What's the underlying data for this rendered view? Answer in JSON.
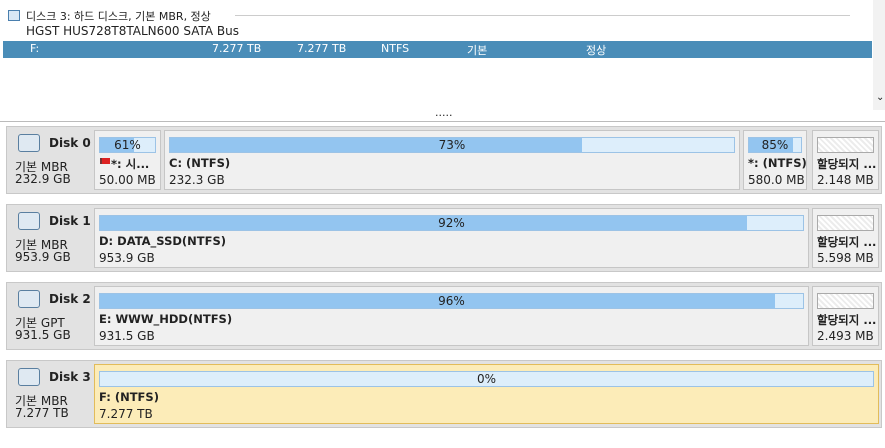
{
  "top_panel": {
    "disk_header": "디스크 3: 하드 디스크, 기본 MBR, 정상",
    "model": "HGST HUS728T8TALN600 SATA Bus",
    "row": [
      "F:",
      "7.277 TB",
      "7.277 TB",
      "NTFS",
      "기본",
      "정상"
    ],
    "more": "....."
  },
  "disks": [
    {
      "name": "Disk 0",
      "type": "기본 MBR",
      "size": "232.9 GB",
      "partitions": [
        {
          "usage": 61,
          "usage_label": "61%",
          "label": "*: 시...",
          "size": "50.00 MB"
        },
        {
          "usage": 73,
          "usage_label": "73%",
          "label": "C: (NTFS)",
          "size": "232.3 GB"
        },
        {
          "usage": 85,
          "usage_label": "85%",
          "label": "*: (NTFS)",
          "size": "580.0 MB"
        },
        {
          "label": "할당되지 ...",
          "size": "2.148 MB"
        }
      ]
    },
    {
      "name": "Disk 1",
      "type": "기본 MBR",
      "size": "953.9 GB",
      "partitions": [
        {
          "usage": 92,
          "usage_label": "92%",
          "label": "D: DATA_SSD(NTFS)",
          "size": "953.9 GB"
        },
        {
          "label": "할당되지 ...",
          "size": "5.598 MB"
        }
      ]
    },
    {
      "name": "Disk 2",
      "type": "기본 GPT",
      "size": "931.5 GB",
      "partitions": [
        {
          "usage": 96,
          "usage_label": "96%",
          "label": "E: WWW_HDD(NTFS)",
          "size": "931.5 GB"
        },
        {
          "label": "할당되지 ...",
          "size": "2.493 MB"
        }
      ]
    },
    {
      "name": "Disk 3",
      "type": "기본 MBR",
      "size": "7.277 TB",
      "partitions": [
        {
          "usage": 0,
          "usage_label": "0%",
          "label": "F: (NTFS)",
          "size": "7.277 TB"
        }
      ]
    }
  ]
}
